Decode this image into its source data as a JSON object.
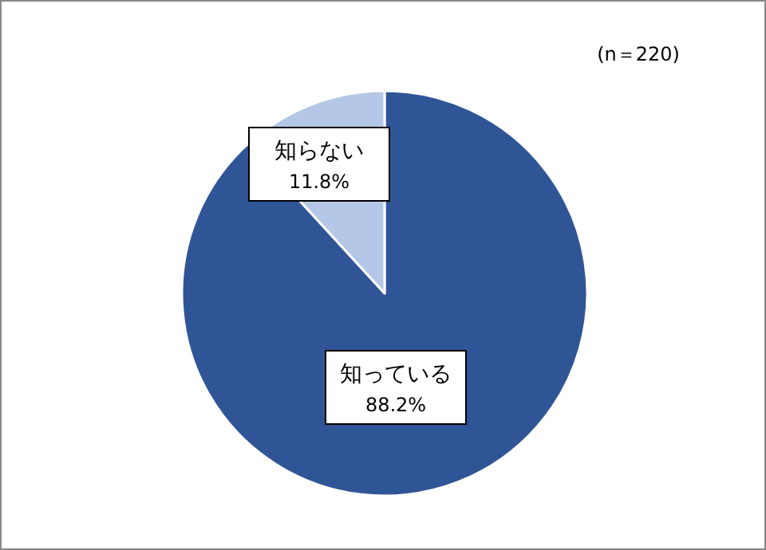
{
  "chart_data": {
    "type": "pie",
    "categories": [
      "知っている",
      "知らない"
    ],
    "values": [
      88.2,
      11.8
    ],
    "colors": [
      "#2f5597",
      "#b4c7e7"
    ],
    "value_labels": [
      "88.2%",
      "11.8%"
    ],
    "annotations": [
      "(n＝220)"
    ]
  }
}
